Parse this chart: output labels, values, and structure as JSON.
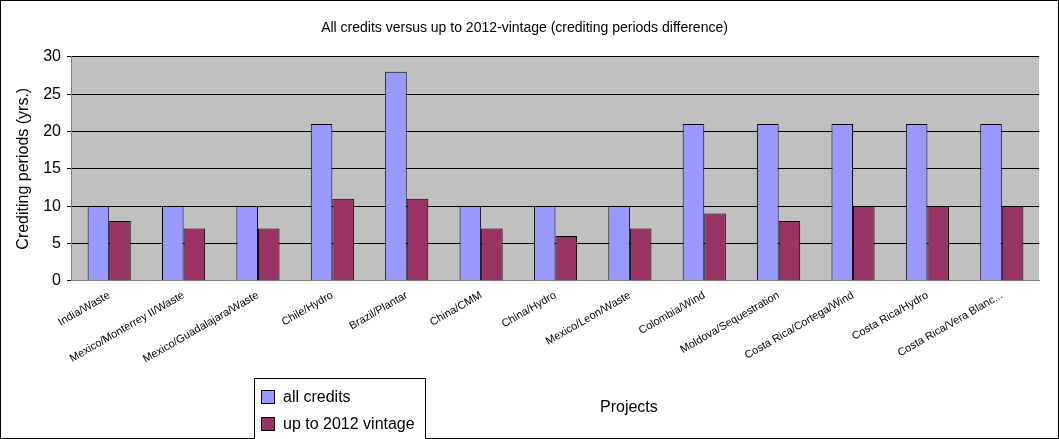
{
  "chart_data": {
    "type": "bar",
    "title": "All credits versus up to 2012-vintage (crediting periods difference)",
    "xlabel": "Projects",
    "ylabel": "Crediting periods (yrs.)",
    "categories": [
      "India/Waste",
      "Mexico/Monterrey II/Waste",
      "Mexico/Guadalajara/Waste",
      "Chile/Hydro",
      "Brazil/Plantar",
      "China/CMM",
      "China/Hydro",
      "Mexico/Leon/Waste",
      "Colombia/Wind",
      "Moldova/Sequestration",
      "Costa Rica/Cortega/Wind",
      "Costa Rica/Hydro",
      "Costa Rica/Vera Blanc..."
    ],
    "series": [
      {
        "name": "all credits",
        "color": "#9999ff",
        "values": [
          10,
          10,
          10,
          21,
          28,
          10,
          10,
          10,
          21,
          21,
          21,
          21,
          21
        ]
      },
      {
        "name": "up to 2012 vintage",
        "color": "#993366",
        "values": [
          8,
          7,
          7,
          11,
          11,
          7,
          6,
          7,
          9,
          8,
          10,
          10,
          10
        ]
      }
    ],
    "ylim": [
      0,
      30
    ],
    "yticks": [
      0,
      5,
      10,
      15,
      20,
      25,
      30
    ],
    "grid": "y",
    "legend": "bottom left"
  }
}
